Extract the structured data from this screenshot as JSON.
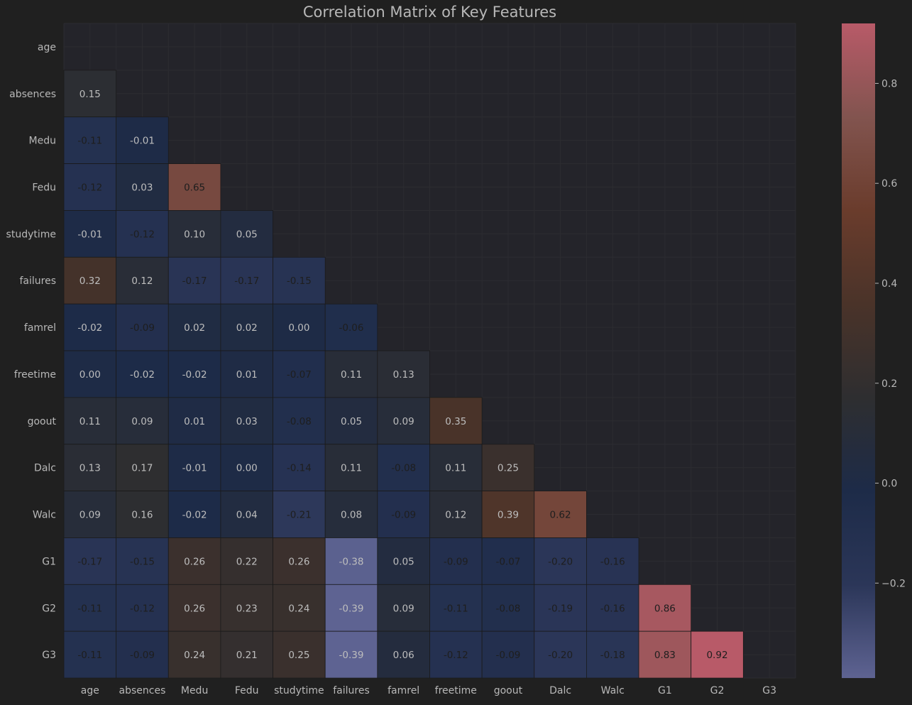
{
  "chart_data": {
    "type": "heatmap",
    "title": "Correlation Matrix of Key Features",
    "xlabel": "",
    "ylabel": "",
    "variables": [
      "age",
      "absences",
      "Medu",
      "Fedu",
      "studytime",
      "failures",
      "famrel",
      "freetime",
      "goout",
      "Dalc",
      "Walc",
      "G1",
      "G2",
      "G3"
    ],
    "mask": "upper triangle incl. diagonal",
    "matrix": [
      [],
      [
        0.15
      ],
      [
        -0.11,
        -0.01
      ],
      [
        -0.12,
        0.03,
        0.65
      ],
      [
        -0.01,
        -0.12,
        0.1,
        0.05
      ],
      [
        0.32,
        0.12,
        -0.17,
        -0.17,
        -0.15
      ],
      [
        -0.02,
        -0.09,
        0.02,
        0.02,
        -0.0,
        -0.06
      ],
      [
        -0.0,
        -0.02,
        -0.02,
        0.01,
        -0.07,
        0.11,
        0.13
      ],
      [
        0.11,
        0.09,
        0.01,
        0.03,
        -0.08,
        0.05,
        0.09,
        0.35
      ],
      [
        0.13,
        0.17,
        -0.01,
        0.0,
        -0.14,
        0.11,
        -0.08,
        0.11,
        0.25
      ],
      [
        0.09,
        0.16,
        -0.02,
        0.04,
        -0.21,
        0.08,
        -0.09,
        0.12,
        0.39,
        0.62
      ],
      [
        -0.17,
        -0.15,
        0.26,
        0.22,
        0.26,
        -0.38,
        0.05,
        -0.09,
        -0.07,
        -0.2,
        -0.16
      ],
      [
        -0.11,
        -0.12,
        0.26,
        0.23,
        0.24,
        -0.39,
        0.09,
        -0.11,
        -0.08,
        -0.19,
        -0.16,
        0.86
      ],
      [
        -0.11,
        -0.09,
        0.24,
        0.21,
        0.25,
        -0.39,
        0.06,
        -0.12,
        -0.09,
        -0.2,
        -0.18,
        0.83,
        0.92
      ]
    ],
    "value_format": "2 decimals",
    "colorbar": {
      "min": -0.39,
      "max": 0.92,
      "ticks": [
        -0.2,
        0.0,
        0.2,
        0.4,
        0.6,
        0.8
      ],
      "tick_labels": [
        "−0.2",
        "0.0",
        "0.2",
        "0.4",
        "0.6",
        "0.8"
      ],
      "colors": [
        "#5e6392",
        "#2b3658",
        "#1d2b48",
        "#2e2e30",
        "#4a3329",
        "#6a3c2c",
        "#82544f",
        "#b85a68"
      ]
    },
    "grid": true
  },
  "colors": {
    "background": "#202020",
    "plot_background": "#24242a",
    "text": "#b8b8b8",
    "cell_text_light": "#bdbdbd",
    "cell_text_dark": "#1e1e1e"
  }
}
